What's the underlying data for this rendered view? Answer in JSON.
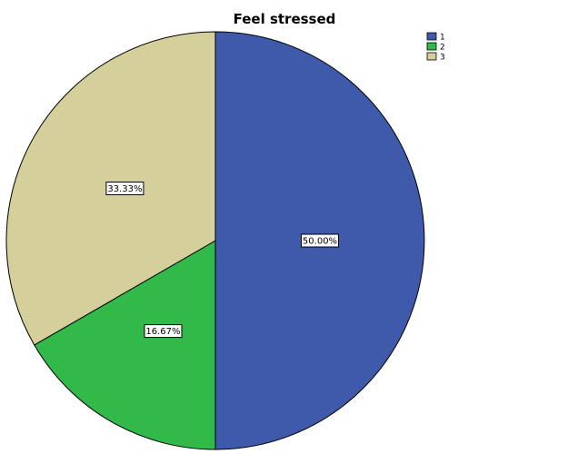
{
  "chart_data": {
    "type": "pie",
    "title": "Feel stressed",
    "categories": [
      "1",
      "2",
      "3"
    ],
    "values": [
      50.0,
      16.67,
      33.33
    ],
    "labels": [
      "50.00%",
      "16.67%",
      "33.33%"
    ],
    "colors": [
      "#3f59ab",
      "#31b94a",
      "#d4cf9b"
    ],
    "start": "12 o'clock",
    "direction": "clockwise",
    "legend": "top-right"
  }
}
